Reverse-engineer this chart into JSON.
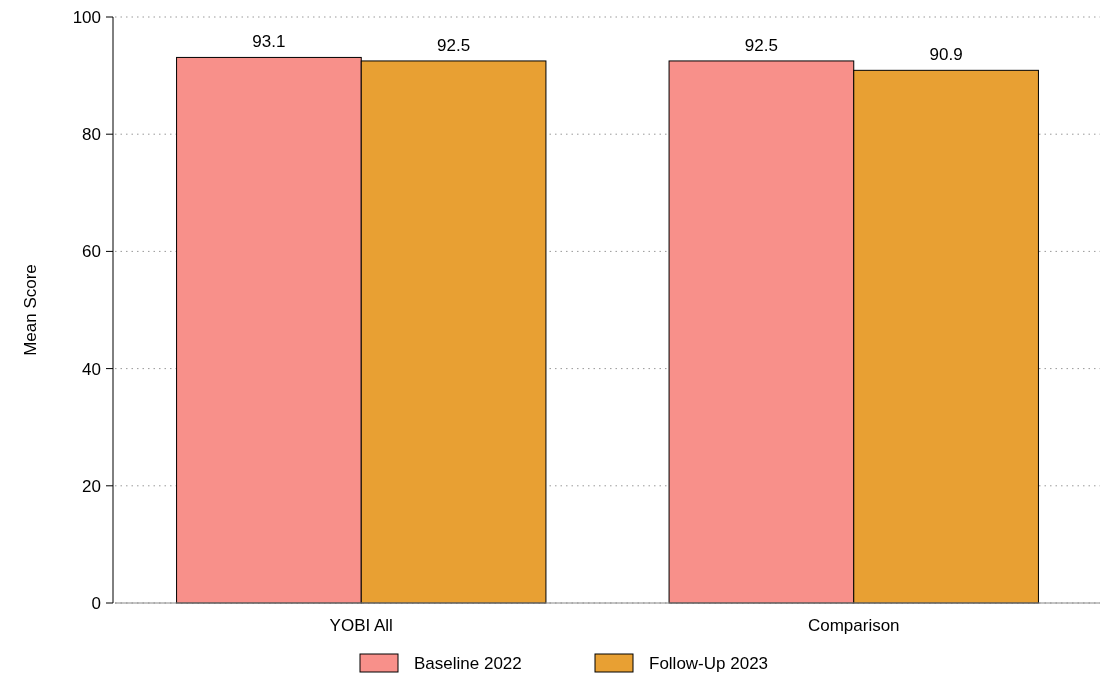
{
  "chart_data": {
    "type": "bar",
    "ylabel": "Mean Score",
    "categories": [
      "YOBI All",
      "Comparison"
    ],
    "series": [
      {
        "name": "Baseline 2022",
        "color": "#f8908a",
        "values": [
          93.1,
          92.5
        ]
      },
      {
        "name": "Follow-Up 2023",
        "color": "#e8a033",
        "values": [
          92.5,
          90.9
        ]
      }
    ],
    "ylim": [
      0,
      100
    ],
    "yticks": [
      0,
      20,
      40,
      60,
      80,
      100
    ],
    "grid": "y",
    "legend": "bottom",
    "data_labels": true
  }
}
